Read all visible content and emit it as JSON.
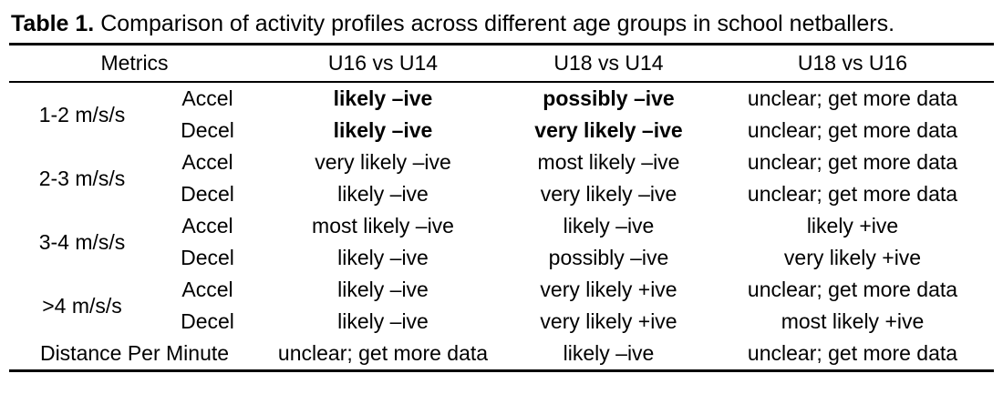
{
  "colors": {
    "text": "#000000",
    "background": "#ffffff",
    "rule": "#000000"
  },
  "caption": {
    "label": "Table 1.",
    "text": " Comparison of activity profiles across different age groups in school netballers."
  },
  "table": {
    "headers": {
      "metrics": "Metrics",
      "comparisons": [
        "U16 vs U14",
        "U18 vs U14",
        "U18 vs U16"
      ]
    },
    "groups": [
      {
        "metric": "1-2 m/s/s",
        "rows": [
          {
            "sub": "Accel",
            "cells": [
              {
                "text": "likely –ive",
                "bold": true
              },
              {
                "text": "possibly –ive",
                "bold": true
              },
              {
                "text": "unclear; get more data",
                "bold": false
              }
            ]
          },
          {
            "sub": "Decel",
            "cells": [
              {
                "text": "likely –ive",
                "bold": true
              },
              {
                "text": "very likely –ive",
                "bold": true
              },
              {
                "text": "unclear; get more data",
                "bold": false
              }
            ]
          }
        ]
      },
      {
        "metric": "2-3 m/s/s",
        "rows": [
          {
            "sub": "Accel",
            "cells": [
              {
                "text": "very likely –ive",
                "bold": false
              },
              {
                "text": "most likely –ive",
                "bold": false
              },
              {
                "text": "unclear; get more data",
                "bold": false
              }
            ]
          },
          {
            "sub": "Decel",
            "cells": [
              {
                "text": "likely –ive",
                "bold": false
              },
              {
                "text": "very likely –ive",
                "bold": false
              },
              {
                "text": "unclear; get more data",
                "bold": false
              }
            ]
          }
        ]
      },
      {
        "metric": "3-4 m/s/s",
        "rows": [
          {
            "sub": "Accel",
            "cells": [
              {
                "text": "most likely –ive",
                "bold": false
              },
              {
                "text": "likely –ive",
                "bold": false
              },
              {
                "text": "likely +ive",
                "bold": false
              }
            ]
          },
          {
            "sub": "Decel",
            "cells": [
              {
                "text": "likely –ive",
                "bold": false
              },
              {
                "text": "possibly –ive",
                "bold": false
              },
              {
                "text": "very likely +ive",
                "bold": false
              }
            ]
          }
        ]
      },
      {
        "metric": ">4 m/s/s",
        "rows": [
          {
            "sub": "Accel",
            "cells": [
              {
                "text": "likely –ive",
                "bold": false
              },
              {
                "text": "very likely +ive",
                "bold": false
              },
              {
                "text": "unclear; get more data",
                "bold": false
              }
            ]
          },
          {
            "sub": "Decel",
            "cells": [
              {
                "text": "likely –ive",
                "bold": false
              },
              {
                "text": "very likely +ive",
                "bold": false
              },
              {
                "text": "most likely +ive",
                "bold": false
              }
            ]
          }
        ]
      },
      {
        "metric": "Distance Per Minute",
        "rows": [
          {
            "sub": null,
            "cells": [
              {
                "text": "unclear; get more data",
                "bold": false
              },
              {
                "text": "likely –ive",
                "bold": false
              },
              {
                "text": "unclear; get more data",
                "bold": false
              }
            ]
          }
        ]
      }
    ]
  }
}
